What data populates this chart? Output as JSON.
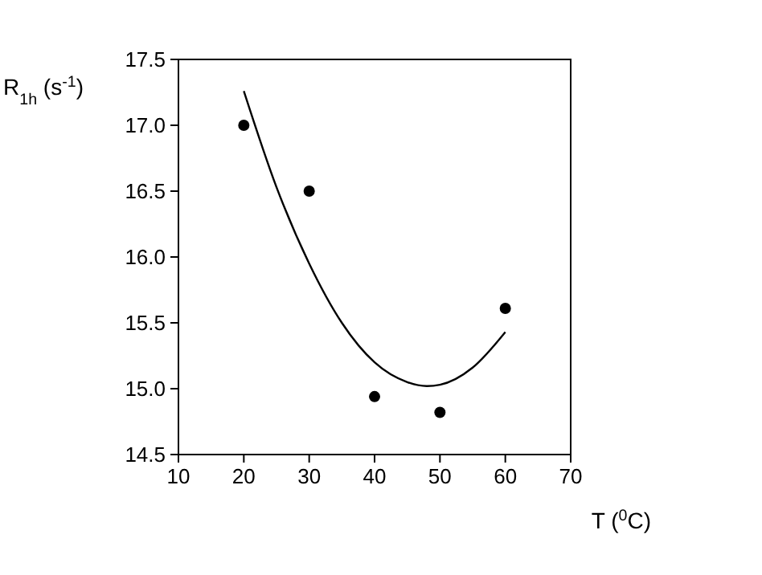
{
  "chart_data": {
    "type": "scatter",
    "xlabel": "T ($^{0}$C)",
    "ylabel": "R$_{1h}$ (s$^{-1}$)",
    "xlim": [
      10,
      70
    ],
    "xticks": [
      10,
      20,
      30,
      40,
      50,
      60,
      70
    ],
    "ylim": [
      14.5,
      17.5
    ],
    "yticks": [
      {
        "value": 14.5,
        "label": "14.5"
      },
      {
        "value": 15,
        "label": "15.0"
      },
      {
        "value": 15.5,
        "label": "15.5"
      },
      {
        "value": 16,
        "label": "16.0"
      },
      {
        "value": 16.5,
        "label": "16.5"
      },
      {
        "value": 17,
        "label": "17.0"
      },
      {
        "value": 17.5,
        "label": "17.5"
      }
    ],
    "grid": false,
    "marker": "circle",
    "series": [
      {
        "color": "#000000",
        "x": [
          20,
          30,
          40,
          50,
          60
        ],
        "values": [
          17.0,
          16.5,
          14.94,
          14.82,
          15.61
        ]
      },
      {
        "type": "line",
        "color": "#000000",
        "line_style": "solid",
        "marker": "none",
        "x": [
          20,
          25,
          30,
          35,
          40,
          45,
          48,
          50,
          55,
          60
        ],
        "values": [
          17.26,
          16.53,
          15.95,
          15.5,
          15.2,
          15.05,
          15.02,
          15.03,
          15.16,
          15.43
        ]
      }
    ]
  }
}
